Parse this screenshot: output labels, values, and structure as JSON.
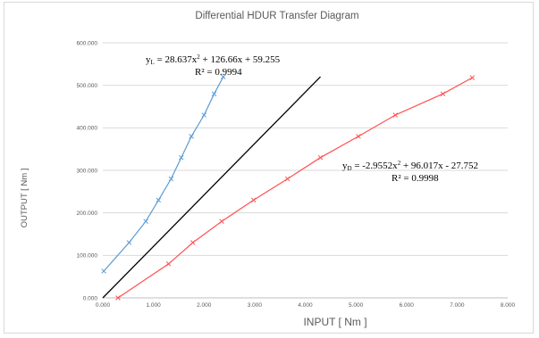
{
  "chart_data": {
    "type": "scatter",
    "title": "Differential HDUR Transfer Diagram",
    "xlabel": "INPUT [ Nm ]",
    "ylabel": "OUTPUT [ Nm ]",
    "xlim": [
      0,
      8
    ],
    "ylim": [
      0,
      600
    ],
    "x_ticks": [
      "0.000",
      "1.000",
      "2.000",
      "3.000",
      "4.000",
      "5.000",
      "6.000",
      "7.000",
      "8.000"
    ],
    "y_ticks": [
      "0.000",
      "100.000",
      "200.000",
      "300.000",
      "400.000",
      "500.000",
      "600.000"
    ],
    "grid": "horizontal",
    "legend": "none",
    "series": [
      {
        "color": "#5b9bd5",
        "marker": "x",
        "x": [
          0.02,
          0.52,
          0.85,
          1.1,
          1.35,
          1.55,
          1.75,
          2.0,
          2.2,
          2.38
        ],
        "y": [
          63,
          130,
          180,
          230,
          280,
          330,
          380,
          430,
          480,
          520
        ]
      },
      {
        "color": "#000000",
        "marker": "none",
        "x": [
          0.0,
          4.3
        ],
        "y": [
          0,
          520
        ]
      },
      {
        "color": "#ff5050",
        "marker": "x",
        "x": [
          0.3,
          1.3,
          1.78,
          2.35,
          2.98,
          3.65,
          4.3,
          5.05,
          5.78,
          6.72,
          7.3
        ],
        "y": [
          0,
          80,
          130,
          180,
          230,
          280,
          330,
          380,
          430,
          480,
          518
        ]
      }
    ],
    "annotations": {
      "left_eq_lhs": "y",
      "left_eq_sub": "L",
      "left_eq_rhs_1": " = 28.637x",
      "left_eq_sup": "2",
      "left_eq_rhs_2": " + 126.66x + 59.255",
      "left_r2": "R² = 0.9994",
      "right_eq_lhs": "y",
      "right_eq_sub": "D",
      "right_eq_rhs_1": " = -2.9552x",
      "right_eq_sup": "2",
      "right_eq_rhs_2": " + 96.017x - 27.752",
      "right_r2": "R² = 0.9998"
    }
  }
}
